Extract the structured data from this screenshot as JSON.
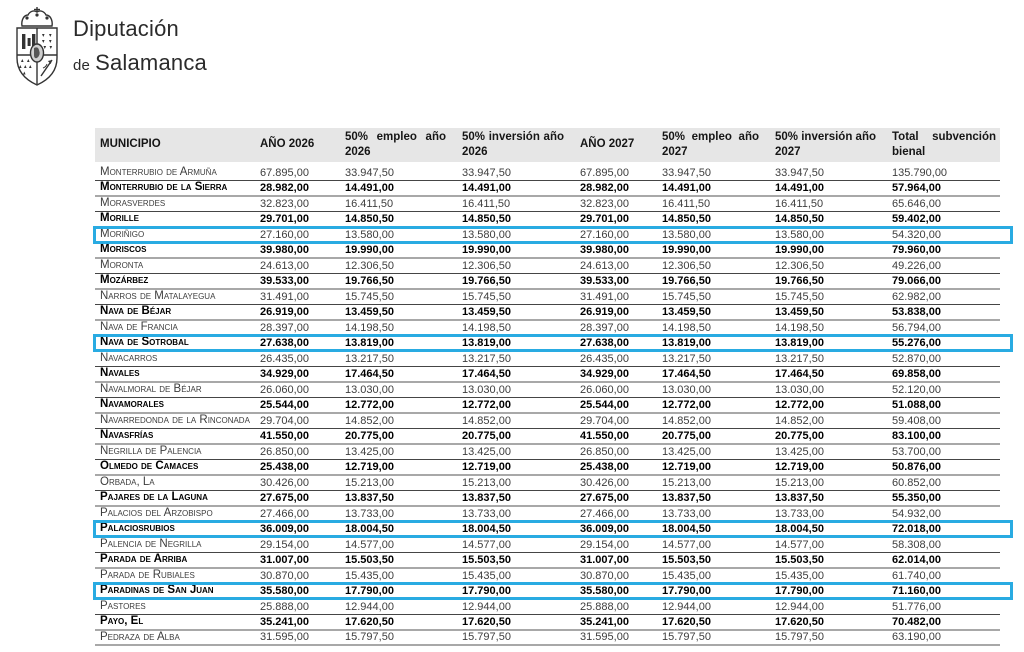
{
  "logo": {
    "line1": "Diputación",
    "line2_small": "de",
    "line2": "Salamanca"
  },
  "colors": {
    "highlight_border": "#29abe2",
    "header_bg": "#e6e6e6",
    "row_separator_dark": "#454545",
    "row_separator_gray": "#a8a8a8"
  },
  "table": {
    "headers": [
      "MUNICIPIO",
      "AÑO 2026",
      "50% empleo año 2026",
      "50% inversión año 2026",
      "AÑO 2027",
      "50% empleo año 2027",
      "50% inversión año 2027",
      "Total subvención bienal"
    ],
    "rows": [
      {
        "municipio": "Monterrubio de Armuña",
        "ano2026": "67.895,00",
        "empleo2026": "33.947,50",
        "inversion2026": "33.947,50",
        "ano2027": "67.895,00",
        "empleo2027": "33.947,50",
        "inversion2027": "33.947,50",
        "total": "135.790,00",
        "bold": false,
        "highlight": false
      },
      {
        "municipio": "Monterrubio de la Sierra",
        "ano2026": "28.982,00",
        "empleo2026": "14.491,00",
        "inversion2026": "14.491,00",
        "ano2027": "28.982,00",
        "empleo2027": "14.491,00",
        "inversion2027": "14.491,00",
        "total": "57.964,00",
        "bold": true,
        "highlight": false
      },
      {
        "municipio": "Morasverdes",
        "ano2026": "32.823,00",
        "empleo2026": "16.411,50",
        "inversion2026": "16.411,50",
        "ano2027": "32.823,00",
        "empleo2027": "16.411,50",
        "inversion2027": "16.411,50",
        "total": "65.646,00",
        "bold": false,
        "highlight": false
      },
      {
        "municipio": "Morille",
        "ano2026": "29.701,00",
        "empleo2026": "14.850,50",
        "inversion2026": "14.850,50",
        "ano2027": "29.701,00",
        "empleo2027": "14.850,50",
        "inversion2027": "14.850,50",
        "total": "59.402,00",
        "bold": true,
        "highlight": false
      },
      {
        "municipio": "Moriñigo",
        "ano2026": "27.160,00",
        "empleo2026": "13.580,00",
        "inversion2026": "13.580,00",
        "ano2027": "27.160,00",
        "empleo2027": "13.580,00",
        "inversion2027": "13.580,00",
        "total": "54.320,00",
        "bold": false,
        "highlight": true
      },
      {
        "municipio": "Moriscos",
        "ano2026": "39.980,00",
        "empleo2026": "19.990,00",
        "inversion2026": "19.990,00",
        "ano2027": "39.980,00",
        "empleo2027": "19.990,00",
        "inversion2027": "19.990,00",
        "total": "79.960,00",
        "bold": true,
        "highlight": false
      },
      {
        "municipio": "Moronta",
        "ano2026": "24.613,00",
        "empleo2026": "12.306,50",
        "inversion2026": "12.306,50",
        "ano2027": "24.613,00",
        "empleo2027": "12.306,50",
        "inversion2027": "12.306,50",
        "total": "49.226,00",
        "bold": false,
        "highlight": false
      },
      {
        "municipio": "Mozárbez",
        "ano2026": "39.533,00",
        "empleo2026": "19.766,50",
        "inversion2026": "19.766,50",
        "ano2027": "39.533,00",
        "empleo2027": "19.766,50",
        "inversion2027": "19.766,50",
        "total": "79.066,00",
        "bold": true,
        "highlight": false
      },
      {
        "municipio": "Narros de Matalayegua",
        "ano2026": "31.491,00",
        "empleo2026": "15.745,50",
        "inversion2026": "15.745,50",
        "ano2027": "31.491,00",
        "empleo2027": "15.745,50",
        "inversion2027": "15.745,50",
        "total": "62.982,00",
        "bold": false,
        "highlight": false
      },
      {
        "municipio": "Nava de Béjar",
        "ano2026": "26.919,00",
        "empleo2026": "13.459,50",
        "inversion2026": "13.459,50",
        "ano2027": "26.919,00",
        "empleo2027": "13.459,50",
        "inversion2027": "13.459,50",
        "total": "53.838,00",
        "bold": true,
        "highlight": false
      },
      {
        "municipio": "Nava de Francia",
        "ano2026": "28.397,00",
        "empleo2026": "14.198,50",
        "inversion2026": "14.198,50",
        "ano2027": "28.397,00",
        "empleo2027": "14.198,50",
        "inversion2027": "14.198,50",
        "total": "56.794,00",
        "bold": false,
        "highlight": false
      },
      {
        "municipio": "Nava de Sotrobal",
        "ano2026": "27.638,00",
        "empleo2026": "13.819,00",
        "inversion2026": "13.819,00",
        "ano2027": "27.638,00",
        "empleo2027": "13.819,00",
        "inversion2027": "13.819,00",
        "total": "55.276,00",
        "bold": true,
        "highlight": true
      },
      {
        "municipio": "Navacarros",
        "ano2026": "26.435,00",
        "empleo2026": "13.217,50",
        "inversion2026": "13.217,50",
        "ano2027": "26.435,00",
        "empleo2027": "13.217,50",
        "inversion2027": "13.217,50",
        "total": "52.870,00",
        "bold": false,
        "highlight": false
      },
      {
        "municipio": "Navales",
        "ano2026": "34.929,00",
        "empleo2026": "17.464,50",
        "inversion2026": "17.464,50",
        "ano2027": "34.929,00",
        "empleo2027": "17.464,50",
        "inversion2027": "17.464,50",
        "total": "69.858,00",
        "bold": true,
        "highlight": false
      },
      {
        "municipio": "Navalmoral de Béjar",
        "ano2026": "26.060,00",
        "empleo2026": "13.030,00",
        "inversion2026": "13.030,00",
        "ano2027": "26.060,00",
        "empleo2027": "13.030,00",
        "inversion2027": "13.030,00",
        "total": "52.120,00",
        "bold": false,
        "highlight": false
      },
      {
        "municipio": "Navamorales",
        "ano2026": "25.544,00",
        "empleo2026": "12.772,00",
        "inversion2026": "12.772,00",
        "ano2027": "25.544,00",
        "empleo2027": "12.772,00",
        "inversion2027": "12.772,00",
        "total": "51.088,00",
        "bold": true,
        "highlight": false
      },
      {
        "municipio": "Navarredonda de la Rinconada",
        "ano2026": "29.704,00",
        "empleo2026": "14.852,00",
        "inversion2026": "14.852,00",
        "ano2027": "29.704,00",
        "empleo2027": "14.852,00",
        "inversion2027": "14.852,00",
        "total": "59.408,00",
        "bold": false,
        "highlight": false
      },
      {
        "municipio": "Navasfrías",
        "ano2026": "41.550,00",
        "empleo2026": "20.775,00",
        "inversion2026": "20.775,00",
        "ano2027": "41.550,00",
        "empleo2027": "20.775,00",
        "inversion2027": "20.775,00",
        "total": "83.100,00",
        "bold": true,
        "highlight": false
      },
      {
        "municipio": "Negrilla de Palencia",
        "ano2026": "26.850,00",
        "empleo2026": "13.425,00",
        "inversion2026": "13.425,00",
        "ano2027": "26.850,00",
        "empleo2027": "13.425,00",
        "inversion2027": "13.425,00",
        "total": "53.700,00",
        "bold": false,
        "highlight": false
      },
      {
        "municipio": "Olmedo de Camaces",
        "ano2026": "25.438,00",
        "empleo2026": "12.719,00",
        "inversion2026": "12.719,00",
        "ano2027": "25.438,00",
        "empleo2027": "12.719,00",
        "inversion2027": "12.719,00",
        "total": "50.876,00",
        "bold": true,
        "highlight": false
      },
      {
        "municipio": "Orbada, La",
        "ano2026": "30.426,00",
        "empleo2026": "15.213,00",
        "inversion2026": "15.213,00",
        "ano2027": "30.426,00",
        "empleo2027": "15.213,00",
        "inversion2027": "15.213,00",
        "total": "60.852,00",
        "bold": false,
        "highlight": false
      },
      {
        "municipio": "Pajares de la Laguna",
        "ano2026": "27.675,00",
        "empleo2026": "13.837,50",
        "inversion2026": "13.837,50",
        "ano2027": "27.675,00",
        "empleo2027": "13.837,50",
        "inversion2027": "13.837,50",
        "total": "55.350,00",
        "bold": true,
        "highlight": false
      },
      {
        "municipio": "Palacios del Arzobispo",
        "ano2026": "27.466,00",
        "empleo2026": "13.733,00",
        "inversion2026": "13.733,00",
        "ano2027": "27.466,00",
        "empleo2027": "13.733,00",
        "inversion2027": "13.733,00",
        "total": "54.932,00",
        "bold": false,
        "highlight": false
      },
      {
        "municipio": "Palaciosrubios",
        "ano2026": "36.009,00",
        "empleo2026": "18.004,50",
        "inversion2026": "18.004,50",
        "ano2027": "36.009,00",
        "empleo2027": "18.004,50",
        "inversion2027": "18.004,50",
        "total": "72.018,00",
        "bold": true,
        "highlight": true
      },
      {
        "municipio": "Palencia de Negrilla",
        "ano2026": "29.154,00",
        "empleo2026": "14.577,00",
        "inversion2026": "14.577,00",
        "ano2027": "29.154,00",
        "empleo2027": "14.577,00",
        "inversion2027": "14.577,00",
        "total": "58.308,00",
        "bold": false,
        "highlight": false
      },
      {
        "municipio": "Parada de Arriba",
        "ano2026": "31.007,00",
        "empleo2026": "15.503,50",
        "inversion2026": "15.503,50",
        "ano2027": "31.007,00",
        "empleo2027": "15.503,50",
        "inversion2027": "15.503,50",
        "total": "62.014,00",
        "bold": true,
        "highlight": false
      },
      {
        "municipio": "Parada de Rubiales",
        "ano2026": "30.870,00",
        "empleo2026": "15.435,00",
        "inversion2026": "15.435,00",
        "ano2027": "30.870,00",
        "empleo2027": "15.435,00",
        "inversion2027": "15.435,00",
        "total": "61.740,00",
        "bold": false,
        "highlight": false
      },
      {
        "municipio": "Paradinas de San Juan",
        "ano2026": "35.580,00",
        "empleo2026": "17.790,00",
        "inversion2026": "17.790,00",
        "ano2027": "35.580,00",
        "empleo2027": "17.790,00",
        "inversion2027": "17.790,00",
        "total": "71.160,00",
        "bold": true,
        "highlight": true
      },
      {
        "municipio": "Pastores",
        "ano2026": "25.888,00",
        "empleo2026": "12.944,00",
        "inversion2026": "12.944,00",
        "ano2027": "25.888,00",
        "empleo2027": "12.944,00",
        "inversion2027": "12.944,00",
        "total": "51.776,00",
        "bold": false,
        "highlight": false
      },
      {
        "municipio": "Payo, El",
        "ano2026": "35.241,00",
        "empleo2026": "17.620,50",
        "inversion2026": "17.620,50",
        "ano2027": "35.241,00",
        "empleo2027": "17.620,50",
        "inversion2027": "17.620,50",
        "total": "70.482,00",
        "bold": true,
        "highlight": false
      },
      {
        "municipio": "Pedraza de Alba",
        "ano2026": "31.595,00",
        "empleo2026": "15.797,50",
        "inversion2026": "15.797,50",
        "ano2027": "31.595,00",
        "empleo2027": "15.797,50",
        "inversion2027": "15.797,50",
        "total": "63.190,00",
        "bold": false,
        "highlight": false
      }
    ]
  }
}
